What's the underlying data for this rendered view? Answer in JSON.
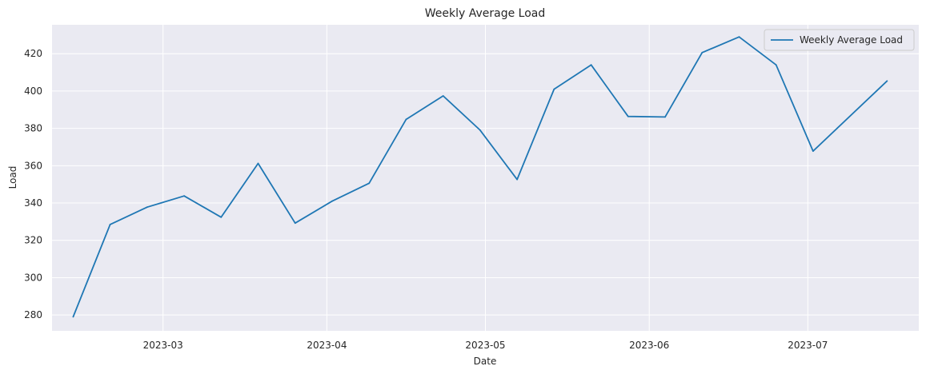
{
  "chart_data": {
    "type": "line",
    "title": "Weekly Average Load",
    "xlabel": "Date",
    "ylabel": "Load",
    "x_ticks": [
      "2023-03",
      "2023-04",
      "2023-05",
      "2023-06",
      "2023-07"
    ],
    "y_ticks": [
      280,
      300,
      320,
      340,
      360,
      380,
      400,
      420
    ],
    "xlim": [
      "2023-02-08",
      "2023-07-22"
    ],
    "ylim": [
      271.5,
      435.5
    ],
    "grid": true,
    "legend_position": "top-right",
    "series": [
      {
        "name": "Weekly Average Load",
        "color": "#1f77b4",
        "x": [
          "2023-02-12",
          "2023-02-19",
          "2023-02-26",
          "2023-03-05",
          "2023-03-12",
          "2023-03-19",
          "2023-03-26",
          "2023-04-02",
          "2023-04-09",
          "2023-04-16",
          "2023-04-23",
          "2023-04-30",
          "2023-05-07",
          "2023-05-14",
          "2023-05-21",
          "2023-05-28",
          "2023-06-04",
          "2023-06-11",
          "2023-06-18",
          "2023-06-25",
          "2023-07-02",
          "2023-07-16"
        ],
        "values": [
          279.0,
          328.5,
          337.8,
          343.8,
          332.4,
          361.2,
          329.2,
          341.0,
          350.6,
          384.8,
          397.4,
          379.0,
          352.6,
          401.0,
          414.0,
          386.4,
          386.1,
          420.6,
          429.0,
          414.0,
          367.8,
          405.4
        ]
      }
    ]
  }
}
